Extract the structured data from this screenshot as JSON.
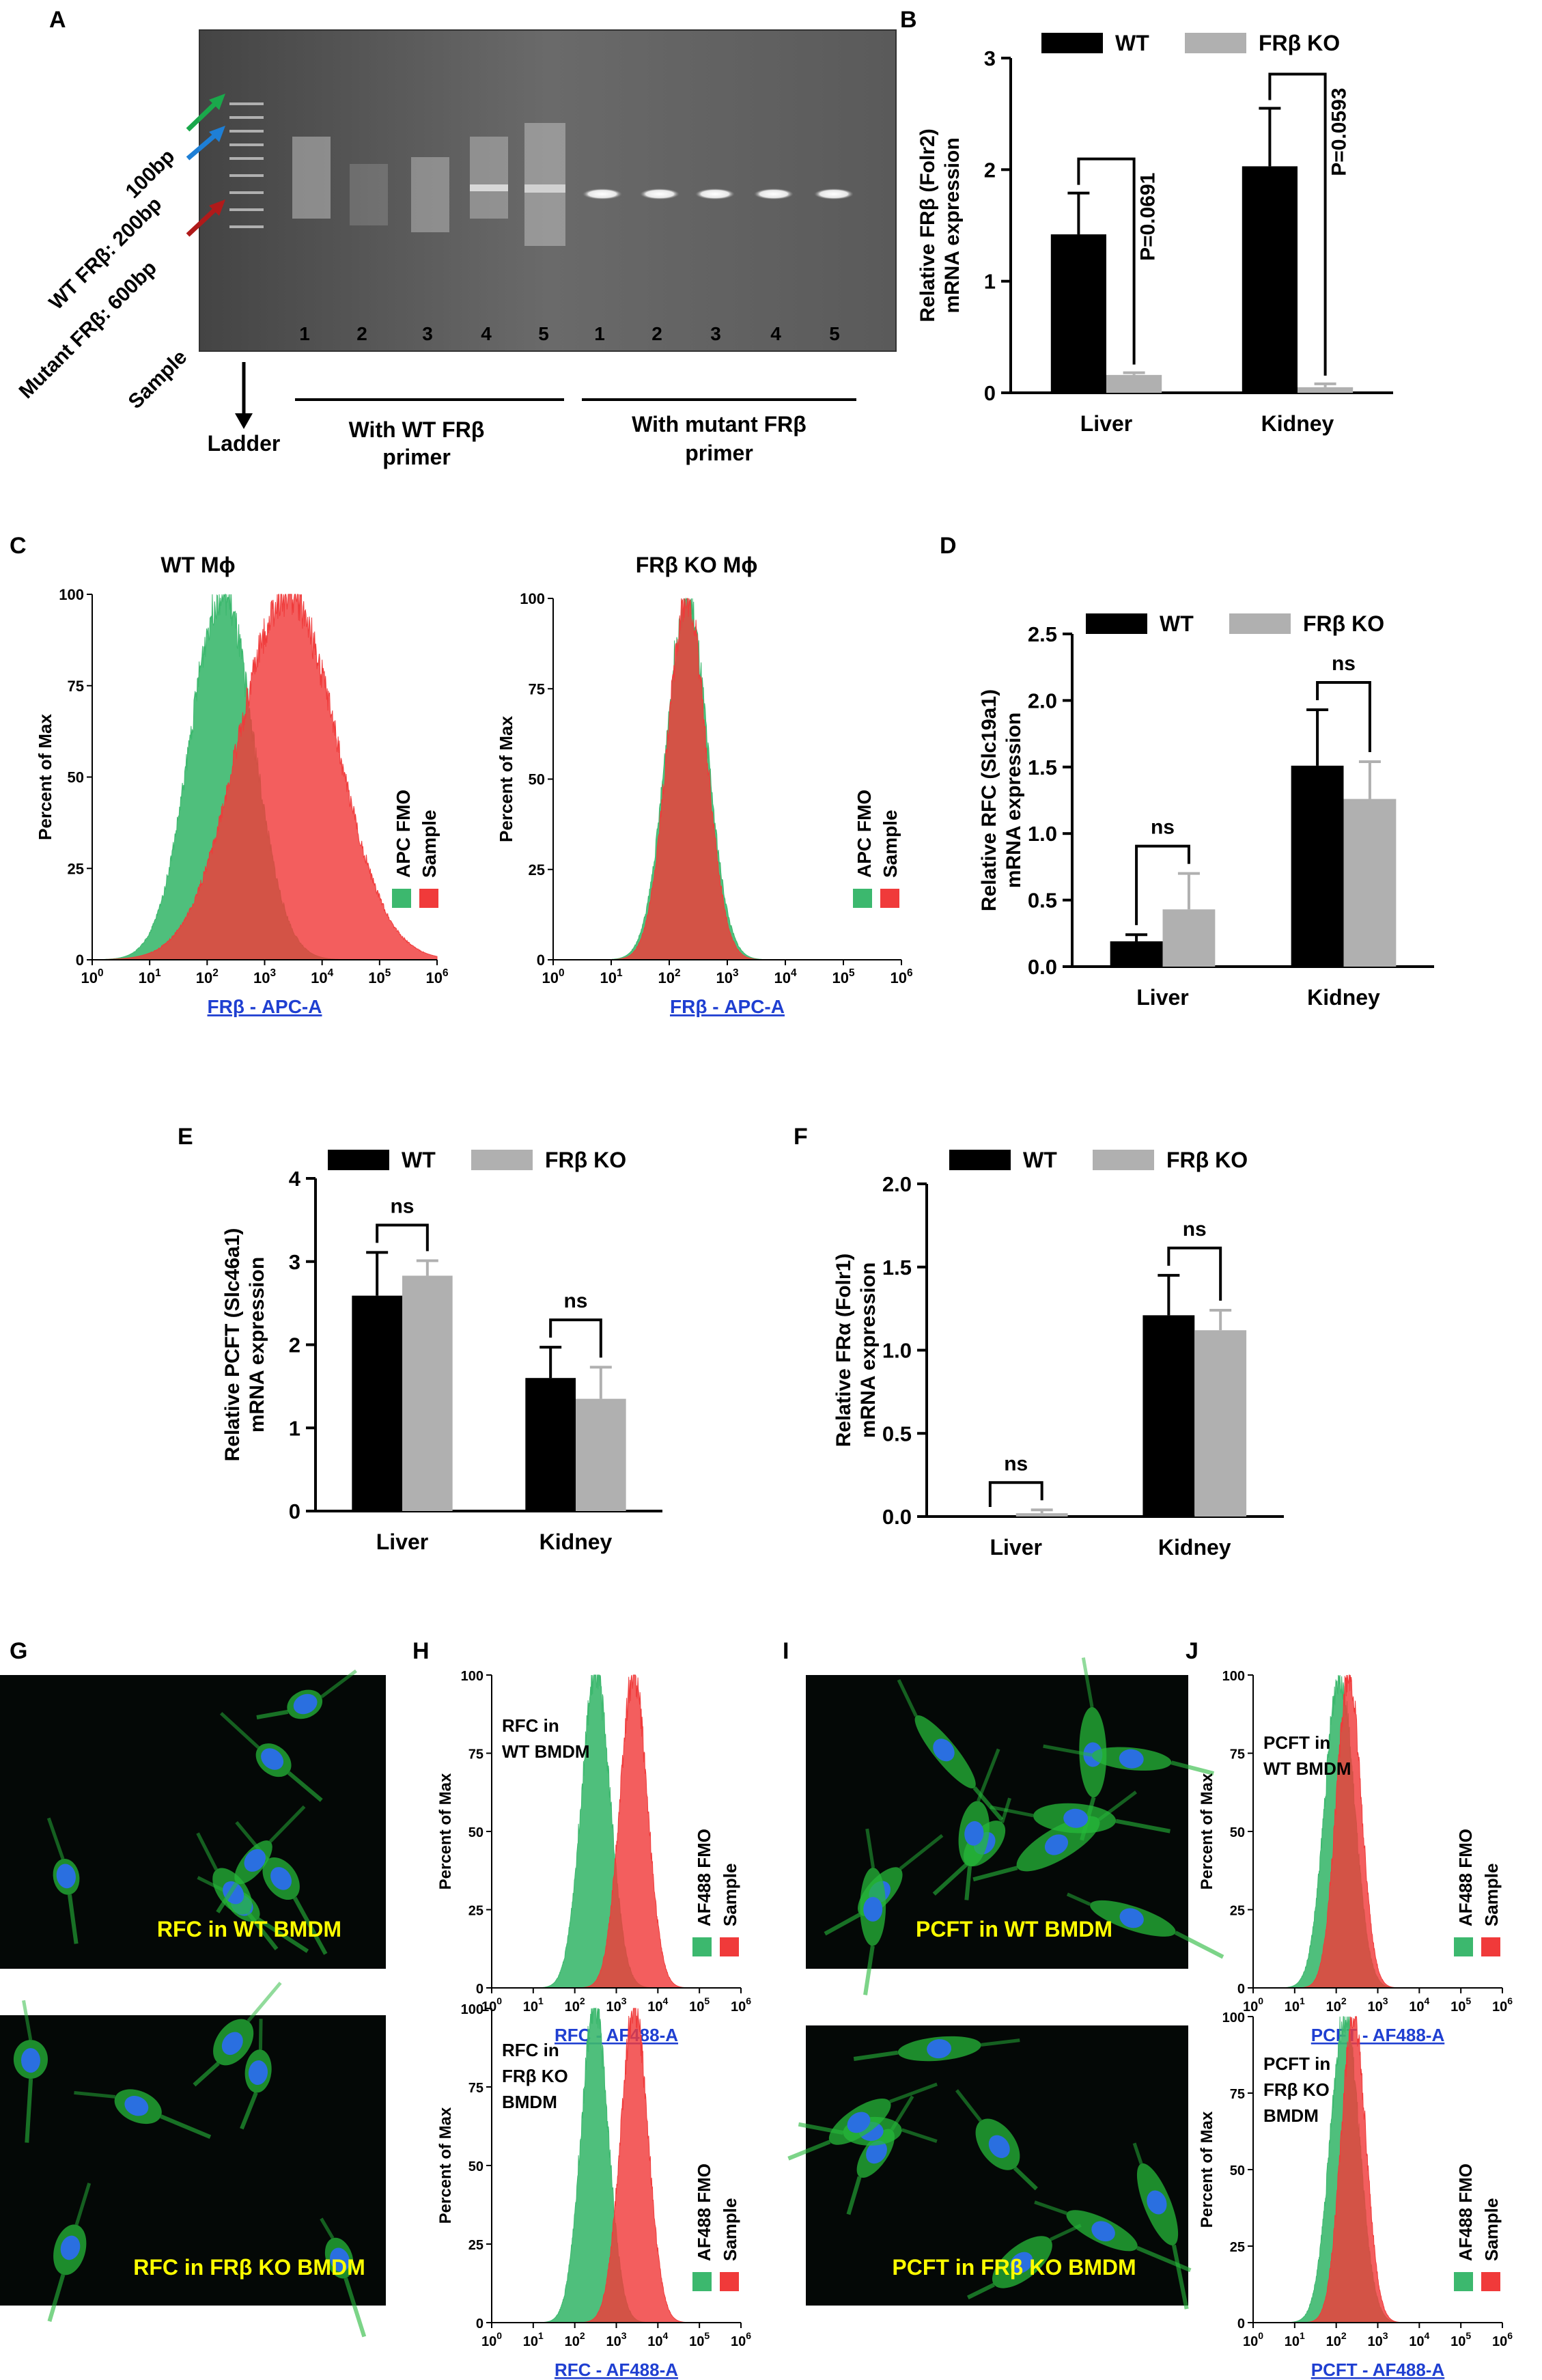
{
  "panels": {
    "A": {
      "label": "A",
      "lane_labels": [
        "1",
        "2",
        "3",
        "4",
        "5",
        "1",
        "2",
        "3",
        "4",
        "5"
      ],
      "left_labels": [
        "100bp",
        "WT FRβ: 200bp",
        "Mutant FRβ: 600bp",
        "Sample"
      ],
      "ladder": "Ladder",
      "group1": "With WT FRβ primer",
      "group2": "With mutant FRβ primer",
      "group1_lines": [
        "With WT FRβ",
        "primer"
      ],
      "group2_lines": [
        "With mutant FRβ",
        "primer"
      ],
      "arrow_colors": [
        "#1aa84b",
        "#1e7fd6",
        "#b01a1a"
      ]
    },
    "B": {
      "label": "B",
      "pvalues": [
        "P=0.0691",
        "P=0.0593"
      ]
    },
    "C": {
      "label": "C",
      "titles": [
        "WT Mϕ",
        "FRβ KO Mϕ"
      ],
      "xlabel": "FRβ - APC-A",
      "ylabel": "Percent of Max",
      "legend": [
        "APC FMO",
        "Sample"
      ]
    },
    "D": {
      "label": "D",
      "sig": [
        "ns",
        "ns"
      ]
    },
    "E": {
      "label": "E",
      "sig": [
        "ns",
        "ns"
      ]
    },
    "F": {
      "label": "F",
      "sig": [
        "ns",
        "ns"
      ]
    },
    "G": {
      "label": "G",
      "captions": [
        "RFC in WT BMDM",
        "RFC in FRβ KO BMDM"
      ]
    },
    "H": {
      "label": "H",
      "insets": [
        [
          "RFC in",
          "WT BMDM"
        ],
        [
          "RFC in",
          "FRβ KO",
          "BMDM"
        ]
      ],
      "xlabel": "RFC - AF488-A",
      "ylabel": "Percent of Max",
      "legend": [
        "AF488 FMO",
        "Sample"
      ]
    },
    "I": {
      "label": "I",
      "captions": [
        "PCFT in WT BMDM",
        "PCFT in FRβ KO BMDM"
      ]
    },
    "J": {
      "label": "J",
      "insets": [
        [
          "PCFT in",
          "WT BMDM"
        ],
        [
          "PCFT in",
          "FRβ KO",
          "BMDM"
        ]
      ],
      "xlabel": "PCFT - AF488-A",
      "ylabel": "Percent of Max",
      "legend": [
        "AF488 FMO",
        "Sample"
      ]
    }
  },
  "colors": {
    "wt": "#000000",
    "ko": "#b0b0b0",
    "fmo": "#3cb86e",
    "sample": "#f03a3a",
    "cell": "#26b83a",
    "nucleus": "#2a6fe0",
    "caption": "#ffff00",
    "axislabel": "#1f3fd1"
  },
  "chart_data": [
    {
      "id": "B",
      "type": "bar",
      "title": "",
      "ylabel": "Relative FRβ (Folr2) mRNA expression",
      "categories": [
        "Liver",
        "Kidney"
      ],
      "series": [
        {
          "name": "WT",
          "values": [
            1.42,
            2.03
          ],
          "err": [
            0.37,
            0.52
          ]
        },
        {
          "name": "FRβ KO",
          "values": [
            0.16,
            0.05
          ],
          "err": [
            0.02,
            0.03
          ]
        }
      ],
      "ylim": [
        0,
        3
      ],
      "yticks": [
        0,
        1,
        2,
        3
      ],
      "legend": "top"
    },
    {
      "id": "D",
      "type": "bar",
      "title": "",
      "ylabel": "Relative RFC (Slc19a1) mRNA expression",
      "categories": [
        "Liver",
        "Kidney"
      ],
      "series": [
        {
          "name": "WT",
          "values": [
            0.19,
            1.51
          ],
          "err": [
            0.05,
            0.42
          ]
        },
        {
          "name": "FRβ KO",
          "values": [
            0.43,
            1.26
          ],
          "err": [
            0.27,
            0.28
          ]
        }
      ],
      "ylim": [
        0,
        2.5
      ],
      "yticks": [
        0.0,
        0.5,
        1.0,
        1.5,
        2.0,
        2.5
      ],
      "legend": "top"
    },
    {
      "id": "E",
      "type": "bar",
      "title": "",
      "ylabel": "Relative PCFT (Slc46a1) mRNA expression",
      "categories": [
        "Liver",
        "Kidney"
      ],
      "series": [
        {
          "name": "WT",
          "values": [
            2.59,
            1.6
          ],
          "err": [
            0.52,
            0.37
          ]
        },
        {
          "name": "FRβ KO",
          "values": [
            2.83,
            1.35
          ],
          "err": [
            0.18,
            0.38
          ]
        }
      ],
      "ylim": [
        0,
        4
      ],
      "yticks": [
        0,
        1,
        2,
        3,
        4
      ],
      "legend": "top"
    },
    {
      "id": "F",
      "type": "bar",
      "title": "",
      "ylabel": "Relative FRα (Folr1) mRNA expression",
      "categories": [
        "Liver",
        "Kidney"
      ],
      "series": [
        {
          "name": "WT",
          "values": [
            0.0,
            1.21
          ],
          "err": [
            0.0,
            0.24
          ]
        },
        {
          "name": "FRβ KO",
          "values": [
            0.02,
            1.12
          ],
          "err": [
            0.02,
            0.12
          ]
        }
      ],
      "ylim": [
        0,
        2
      ],
      "yticks": [
        0.0,
        0.5,
        1.0,
        1.5,
        2.0
      ],
      "legend": "top"
    },
    {
      "id": "C1",
      "type": "area",
      "title": "WT Mϕ",
      "xlabel": "FRβ - APC-A",
      "ylabel": "Percent of Max",
      "xscale": "log",
      "xlim": [
        1,
        1000000
      ],
      "ylim": [
        0,
        100
      ],
      "series": [
        {
          "name": "APC FMO",
          "peak": 180,
          "width": 0.55
        },
        {
          "name": "Sample",
          "peak": 2500,
          "width": 0.85
        }
      ]
    },
    {
      "id": "C2",
      "type": "area",
      "title": "FRβ KO Mϕ",
      "xlabel": "FRβ - APC-A",
      "ylabel": "Percent of Max",
      "xscale": "log",
      "xlim": [
        1,
        1000000
      ],
      "ylim": [
        0,
        100
      ],
      "series": [
        {
          "name": "APC FMO",
          "peak": 200,
          "width": 0.35
        },
        {
          "name": "Sample",
          "peak": 200,
          "width": 0.33
        }
      ]
    },
    {
      "id": "H1",
      "type": "area",
      "xlabel": "RFC - AF488-A",
      "ylabel": "Percent of Max",
      "xscale": "log",
      "xlim": [
        1,
        1000000
      ],
      "ylim": [
        0,
        100
      ],
      "series": [
        {
          "name": "AF488 FMO",
          "peak": 320,
          "width": 0.35
        },
        {
          "name": "Sample",
          "peak": 2600,
          "width": 0.33
        }
      ]
    },
    {
      "id": "H2",
      "type": "area",
      "xlabel": "RFC - AF488-A",
      "ylabel": "Percent of Max",
      "xscale": "log",
      "xlim": [
        1,
        1000000
      ],
      "ylim": [
        0,
        100
      ],
      "series": [
        {
          "name": "AF488 FMO",
          "peak": 300,
          "width": 0.33
        },
        {
          "name": "Sample",
          "peak": 2700,
          "width": 0.33
        }
      ]
    },
    {
      "id": "J1",
      "type": "area",
      "xlabel": "PCFT - AF488-A",
      "ylabel": "Percent of Max",
      "xscale": "log",
      "xlim": [
        1,
        1000000
      ],
      "ylim": [
        0,
        100
      ],
      "series": [
        {
          "name": "AF488 FMO",
          "peak": 120,
          "width": 0.35
        },
        {
          "name": "Sample",
          "peak": 200,
          "width": 0.3
        }
      ]
    },
    {
      "id": "J2",
      "type": "area",
      "xlabel": "PCFT - AF488-A",
      "ylabel": "Percent of Max",
      "xscale": "log",
      "xlim": [
        1,
        1000000
      ],
      "ylim": [
        0,
        100
      ],
      "series": [
        {
          "name": "AF488 FMO",
          "peak": 160,
          "width": 0.35
        },
        {
          "name": "Sample",
          "peak": 260,
          "width": 0.3
        }
      ]
    }
  ]
}
